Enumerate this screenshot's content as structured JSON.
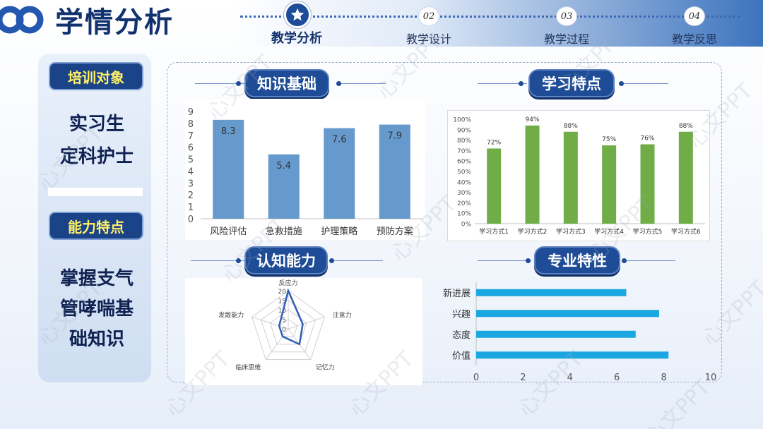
{
  "header": {
    "title": "学情分析",
    "nav": [
      {
        "number": "",
        "label": "教学分析",
        "active": true
      },
      {
        "number": "02",
        "label": "教学设计",
        "active": false
      },
      {
        "number": "03",
        "label": "教学过程",
        "active": false
      },
      {
        "number": "04",
        "label": "教学反思",
        "active": false
      }
    ]
  },
  "left_panel": {
    "tag1": "培训对象",
    "target_line1": "实习生",
    "target_line2": "定科护士",
    "tag2": "能力特点",
    "ability_line1": "掌握支气",
    "ability_line2": "管哮喘基",
    "ability_line3": "础知识"
  },
  "sections": {
    "knowledge": "知识基础",
    "learning": "学习特点",
    "cognitive": "认知能力",
    "professional": "专业特性"
  },
  "watermark": "心文PPT",
  "colors": {
    "navy": "#1f4c96",
    "bar_blue": "#6699cc",
    "bar_green": "#70ad47",
    "bar_cyan": "#1aa6e0",
    "radar_line": "#2f5fb5"
  },
  "chart_data": [
    {
      "id": "knowledge",
      "type": "bar",
      "categories": [
        "风险评估",
        "急救措施",
        "护理策略",
        "预防方案"
      ],
      "values": [
        8.3,
        5.4,
        7.6,
        7.9
      ],
      "ylim": [
        0,
        9
      ],
      "yticks": [
        "0",
        "1",
        "2",
        "3",
        "4",
        "5",
        "6",
        "7",
        "8",
        "9"
      ],
      "data_labels": [
        "8.3",
        "5.4",
        "7.6",
        "7.9"
      ],
      "grid": false
    },
    {
      "id": "learning",
      "type": "bar",
      "categories": [
        "学习方式1",
        "学习方式2",
        "学习方式3",
        "学习方式4",
        "学习方式5",
        "学习方式6"
      ],
      "values": [
        72,
        94,
        88,
        75,
        76,
        88
      ],
      "ylim": [
        0,
        100
      ],
      "yticks": [
        "0%",
        "10%",
        "20%",
        "30%",
        "40%",
        "50%",
        "60%",
        "70%",
        "80%",
        "90%",
        "100%"
      ],
      "data_labels": [
        "72%",
        "94%",
        "88%",
        "75%",
        "76%",
        "88%"
      ],
      "grid": false
    },
    {
      "id": "cognitive",
      "type": "radar",
      "axes": [
        "反应力",
        "注意力",
        "记忆力",
        "临床思维",
        "发散能力"
      ],
      "values": [
        20,
        8,
        10,
        5,
        5
      ],
      "rlim": [
        0,
        20
      ],
      "rticks": [
        "0",
        "5",
        "10",
        "15",
        "20"
      ],
      "grid": true
    },
    {
      "id": "professional",
      "type": "bar-horizontal",
      "categories": [
        "新进展",
        "兴趣",
        "态度",
        "价值"
      ],
      "values": [
        6.4,
        7.8,
        6.8,
        8.2
      ],
      "xlim": [
        0,
        10
      ],
      "xticks": [
        "0",
        "2",
        "4",
        "6",
        "8",
        "10"
      ],
      "grid": false
    }
  ]
}
